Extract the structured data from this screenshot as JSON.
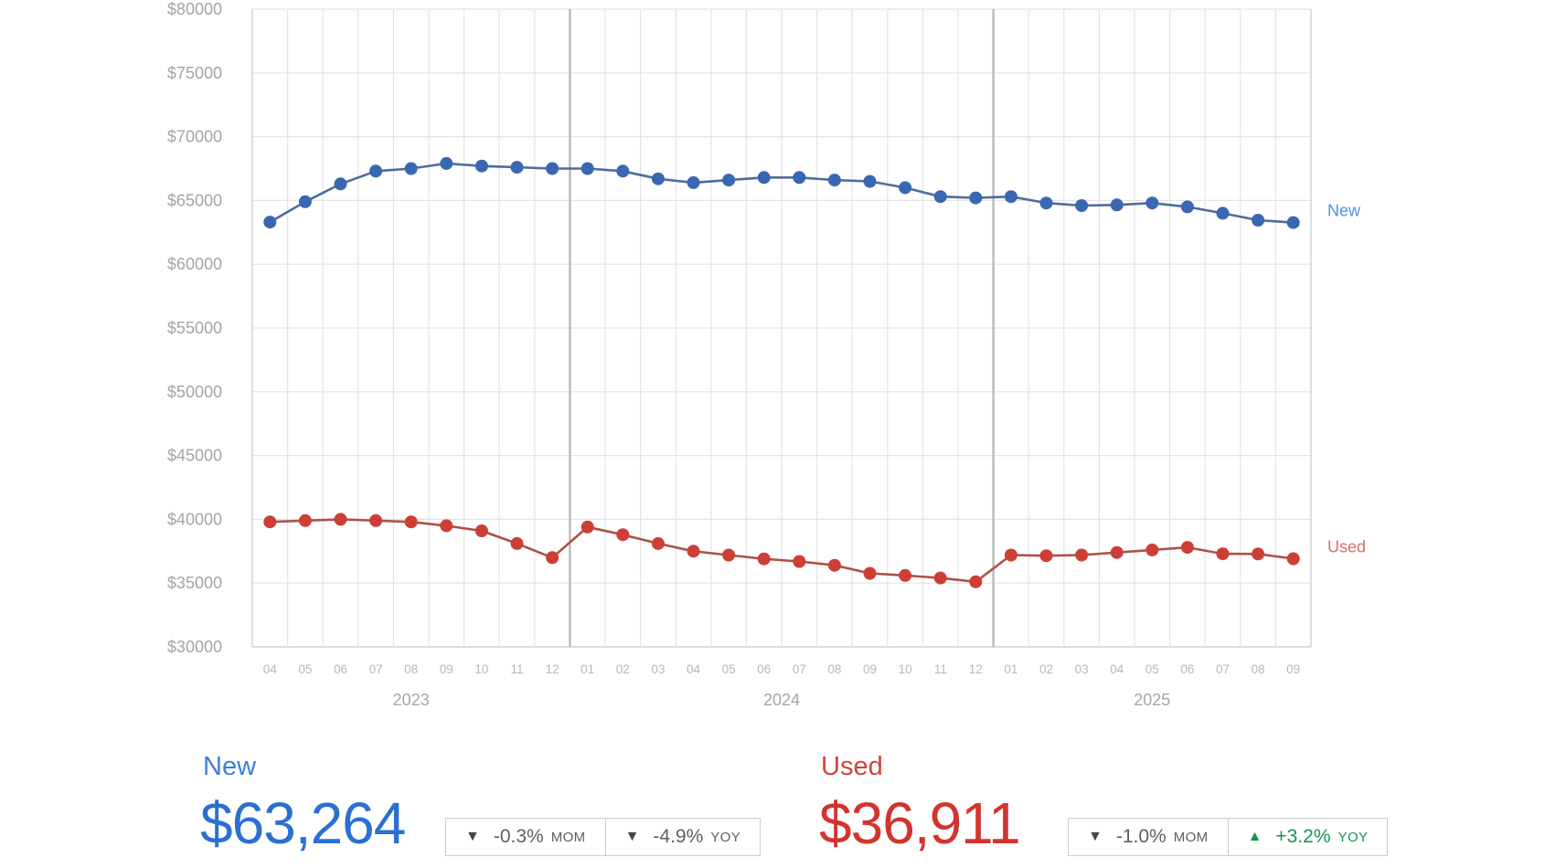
{
  "chart": {
    "y_ticks": [
      {
        "value": 80000,
        "label": "$80000"
      },
      {
        "value": 75000,
        "label": "$75000"
      },
      {
        "value": 70000,
        "label": "$70000"
      },
      {
        "value": 65000,
        "label": "$65000"
      },
      {
        "value": 60000,
        "label": "$60000"
      },
      {
        "value": 55000,
        "label": "$55000"
      },
      {
        "value": 50000,
        "label": "$50000"
      },
      {
        "value": 45000,
        "label": "$45000"
      },
      {
        "value": 40000,
        "label": "$40000"
      },
      {
        "value": 35000,
        "label": "$35000"
      },
      {
        "value": 30000,
        "label": "$30000"
      }
    ],
    "x_axis": {
      "years": [
        {
          "label": "2023",
          "months": [
            "04",
            "05",
            "06",
            "07",
            "08",
            "09",
            "10",
            "11",
            "12"
          ]
        },
        {
          "label": "2024",
          "months": [
            "01",
            "02",
            "03",
            "04",
            "05",
            "06",
            "07",
            "08",
            "09",
            "10",
            "11",
            "12"
          ]
        },
        {
          "label": "2025",
          "months": [
            "01",
            "02",
            "03",
            "04",
            "05",
            "06",
            "07",
            "08",
            "09"
          ]
        }
      ]
    },
    "colors": {
      "grid": "#e3e4e6",
      "grid_edge": "#c6c8ca",
      "year_separator": "#b7babd",
      "y_tick_text": "#9fa5aa",
      "month_text": "#b3b8bd",
      "year_text": "#a2a7ac"
    }
  },
  "chart_data": {
    "type": "line",
    "x": [
      "2023-04",
      "2023-05",
      "2023-06",
      "2023-07",
      "2023-08",
      "2023-09",
      "2023-10",
      "2023-11",
      "2023-12",
      "2024-01",
      "2024-02",
      "2024-03",
      "2024-04",
      "2024-05",
      "2024-06",
      "2024-07",
      "2024-08",
      "2024-09",
      "2024-10",
      "2024-11",
      "2024-12",
      "2025-01",
      "2025-02",
      "2025-03",
      "2025-04",
      "2025-05",
      "2025-06",
      "2025-07",
      "2025-08",
      "2025-09"
    ],
    "series": [
      {
        "name": "New",
        "values": [
          63300,
          64900,
          66300,
          67300,
          67500,
          67900,
          67700,
          67600,
          67500,
          67500,
          67300,
          66700,
          66400,
          66600,
          66800,
          66800,
          66600,
          66500,
          66000,
          65300,
          65200,
          65300,
          64800,
          64600,
          64650,
          64800,
          64500,
          64000,
          63450,
          63264
        ],
        "point_color": "#3a67b1",
        "line_color": "#4e6d99",
        "label_color": "#4f93de"
      },
      {
        "name": "Used",
        "values": [
          39800,
          39900,
          40000,
          39900,
          39800,
          39500,
          39100,
          38100,
          37000,
          39400,
          38800,
          38100,
          37500,
          37200,
          36900,
          36700,
          36400,
          35770,
          35600,
          35400,
          35100,
          37200,
          37150,
          37200,
          37400,
          37600,
          37800,
          37300,
          37284,
          36911
        ],
        "point_color": "#cd3e36",
        "line_color": "#ad5148",
        "label_color": "#d4716d"
      }
    ],
    "ylim": [
      30000,
      80000
    ],
    "grid": true,
    "legend_position": "right-of-line-end"
  },
  "summary": {
    "new": {
      "label": "New",
      "value": "$63,264",
      "mom": {
        "icon": "▼",
        "direction": "down",
        "value": "-0.3%",
        "unit": "MOM"
      },
      "yoy": {
        "icon": "▼",
        "direction": "down",
        "value": "-4.9%",
        "unit": "YOY"
      }
    },
    "used": {
      "label": "Used",
      "value": "$36,911",
      "mom": {
        "icon": "▼",
        "direction": "down",
        "value": "-1.0%",
        "unit": "MOM"
      },
      "yoy": {
        "icon": "▲",
        "direction": "up",
        "value": "+3.2%",
        "unit": "YOY"
      }
    },
    "accent_new": "#2b6fd1",
    "accent_used": "#d2342e",
    "positive_green": "#149652"
  }
}
